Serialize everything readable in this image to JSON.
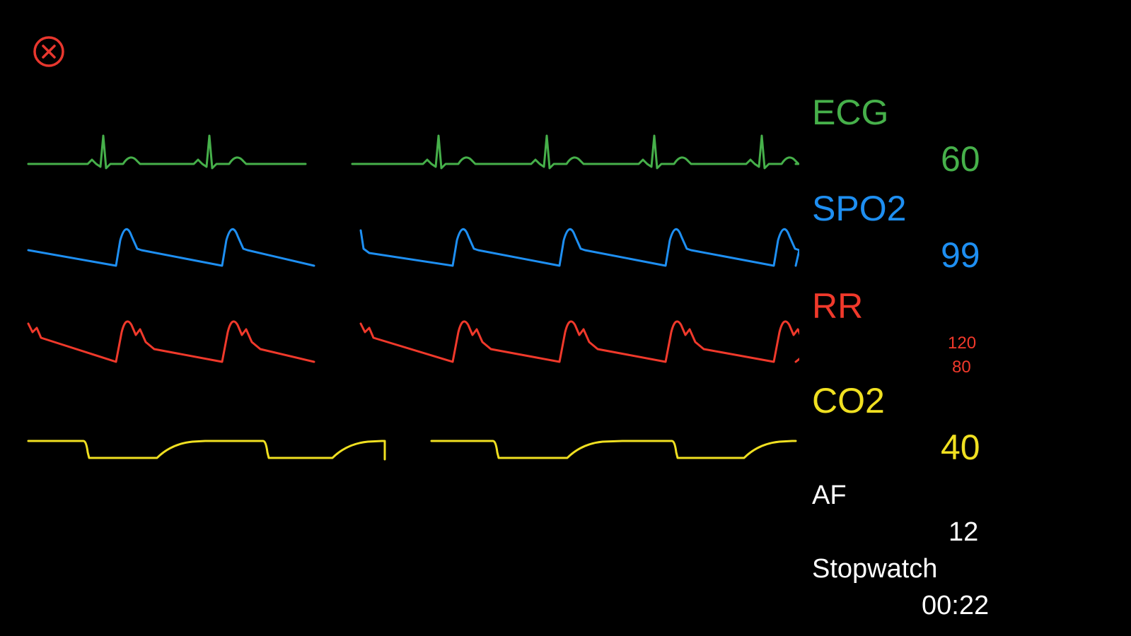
{
  "close_button": {
    "icon": "close-circle-icon",
    "color": "#e8372e"
  },
  "vitals": {
    "ecg": {
      "label": "ECG",
      "value": "60",
      "color": "#46b04a"
    },
    "spo2": {
      "label": "SPO2",
      "value": "99",
      "color": "#1e8ff2"
    },
    "rr": {
      "label": "RR",
      "systolic": "120",
      "diastolic": "80",
      "color": "#f0392b"
    },
    "co2": {
      "label": "CO2",
      "value": "40",
      "color": "#f0e021"
    },
    "af": {
      "label": "AF",
      "value": "12",
      "color": "#ffffff"
    },
    "stopwatch": {
      "label": "Stopwatch",
      "value": "00:22",
      "color": "#ffffff"
    }
  }
}
